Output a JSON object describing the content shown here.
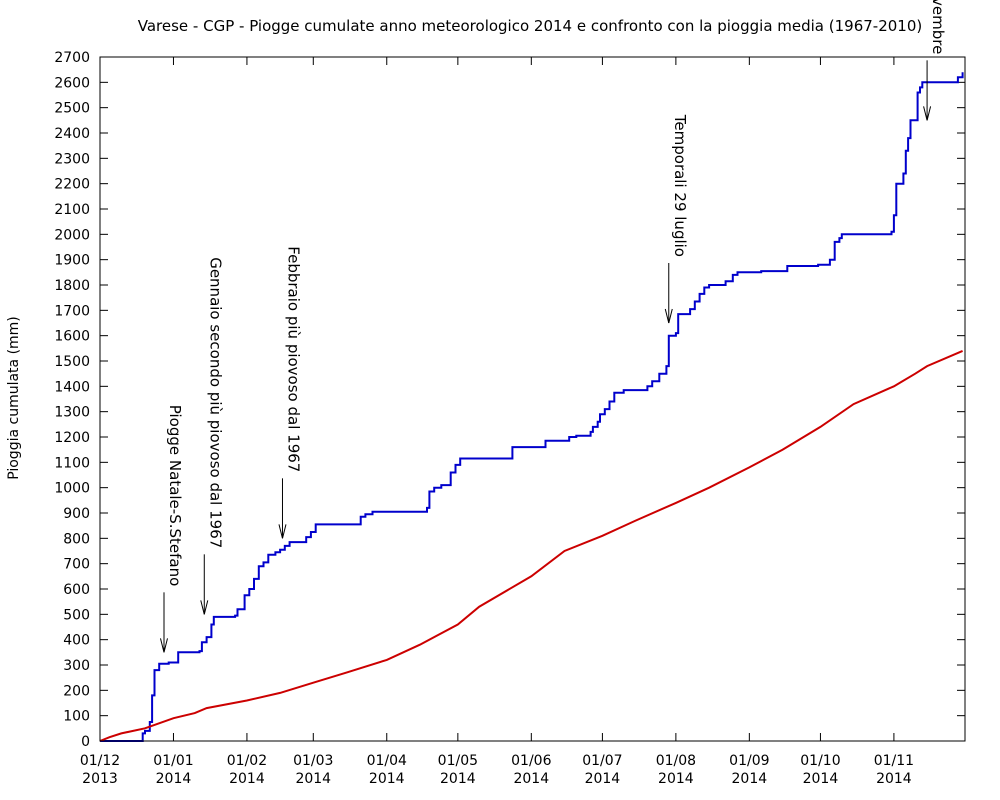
{
  "chart_data": {
    "type": "line",
    "title": "Varese - CGP - Piogge cumulate anno meteorologico 2014 e confronto con la pioggia media (1967-2010)",
    "xlabel": "",
    "ylabel": "Pioggia cumulata (mm)",
    "ylim": [
      0,
      2700
    ],
    "xlim": [
      "2013-12-01",
      "2014-11-30"
    ],
    "yticks": [
      "0",
      "100",
      "200",
      "300",
      "400",
      "500",
      "600",
      "700",
      "800",
      "900",
      "1000",
      "1100",
      "1200",
      "1300",
      "1400",
      "1500",
      "1600",
      "1700",
      "1800",
      "1900",
      "2000",
      "2100",
      "2200",
      "2300",
      "2400",
      "2500",
      "2600",
      "2700"
    ],
    "xticks": [
      {
        "date": "2013-12-01",
        "line1": "01/12",
        "line2": "2013"
      },
      {
        "date": "2014-01-01",
        "line1": "01/01",
        "line2": "2014"
      },
      {
        "date": "2014-02-01",
        "line1": "01/02",
        "line2": "2014"
      },
      {
        "date": "2014-03-01",
        "line1": "01/03",
        "line2": "2014"
      },
      {
        "date": "2014-04-01",
        "line1": "01/04",
        "line2": "2014"
      },
      {
        "date": "2014-05-01",
        "line1": "01/05",
        "line2": "2014"
      },
      {
        "date": "2014-06-01",
        "line1": "01/06",
        "line2": "2014"
      },
      {
        "date": "2014-07-01",
        "line1": "01/07",
        "line2": "2014"
      },
      {
        "date": "2014-08-01",
        "line1": "01/08",
        "line2": "2014"
      },
      {
        "date": "2014-09-01",
        "line1": "01/09",
        "line2": "2014"
      },
      {
        "date": "2014-10-01",
        "line1": "01/10",
        "line2": "2014"
      },
      {
        "date": "2014-11-01",
        "line1": "01/11",
        "line2": "2014"
      }
    ],
    "grid": false,
    "legend": "none",
    "series": [
      {
        "color": "#0000cc",
        "step": true,
        "points": [
          [
            "2013-12-01",
            0
          ],
          [
            "2013-12-18",
            0
          ],
          [
            "2013-12-19",
            30
          ],
          [
            "2013-12-20",
            40
          ],
          [
            "2013-12-22",
            75
          ],
          [
            "2013-12-23",
            180
          ],
          [
            "2013-12-24",
            280
          ],
          [
            "2013-12-26",
            305
          ],
          [
            "2013-12-30",
            310
          ],
          [
            "2014-01-03",
            350
          ],
          [
            "2014-01-12",
            355
          ],
          [
            "2014-01-13",
            390
          ],
          [
            "2014-01-15",
            410
          ],
          [
            "2014-01-17",
            460
          ],
          [
            "2014-01-18",
            490
          ],
          [
            "2014-01-27",
            495
          ],
          [
            "2014-01-28",
            520
          ],
          [
            "2014-01-31",
            575
          ],
          [
            "2014-02-02",
            600
          ],
          [
            "2014-02-04",
            640
          ],
          [
            "2014-02-06",
            690
          ],
          [
            "2014-02-08",
            705
          ],
          [
            "2014-02-10",
            735
          ],
          [
            "2014-02-13",
            745
          ],
          [
            "2014-02-15",
            755
          ],
          [
            "2014-02-17",
            770
          ],
          [
            "2014-02-19",
            785
          ],
          [
            "2014-02-26",
            805
          ],
          [
            "2014-02-28",
            825
          ],
          [
            "2014-03-02",
            855
          ],
          [
            "2014-03-21",
            885
          ],
          [
            "2014-03-23",
            895
          ],
          [
            "2014-03-26",
            905
          ],
          [
            "2014-04-18",
            920
          ],
          [
            "2014-04-19",
            985
          ],
          [
            "2014-04-21",
            1000
          ],
          [
            "2014-04-24",
            1010
          ],
          [
            "2014-04-28",
            1060
          ],
          [
            "2014-04-30",
            1090
          ],
          [
            "2014-05-02",
            1115
          ],
          [
            "2014-05-24",
            1160
          ],
          [
            "2014-06-07",
            1185
          ],
          [
            "2014-06-17",
            1200
          ],
          [
            "2014-06-20",
            1205
          ],
          [
            "2014-06-26",
            1220
          ],
          [
            "2014-06-27",
            1240
          ],
          [
            "2014-06-29",
            1260
          ],
          [
            "2014-06-30",
            1290
          ],
          [
            "2014-07-02",
            1310
          ],
          [
            "2014-07-04",
            1340
          ],
          [
            "2014-07-06",
            1375
          ],
          [
            "2014-07-10",
            1385
          ],
          [
            "2014-07-20",
            1400
          ],
          [
            "2014-07-22",
            1420
          ],
          [
            "2014-07-25",
            1450
          ],
          [
            "2014-07-28",
            1480
          ],
          [
            "2014-07-29",
            1600
          ],
          [
            "2014-08-01",
            1610
          ],
          [
            "2014-08-02",
            1685
          ],
          [
            "2014-08-07",
            1705
          ],
          [
            "2014-08-09",
            1735
          ],
          [
            "2014-08-11",
            1765
          ],
          [
            "2014-08-13",
            1790
          ],
          [
            "2014-08-15",
            1800
          ],
          [
            "2014-08-22",
            1815
          ],
          [
            "2014-08-25",
            1840
          ],
          [
            "2014-08-27",
            1850
          ],
          [
            "2014-09-06",
            1855
          ],
          [
            "2014-09-17",
            1875
          ],
          [
            "2014-09-30",
            1880
          ],
          [
            "2014-10-05",
            1900
          ],
          [
            "2014-10-07",
            1970
          ],
          [
            "2014-10-09",
            1985
          ],
          [
            "2014-10-10",
            2000
          ],
          [
            "2014-10-31",
            2010
          ],
          [
            "2014-11-01",
            2075
          ],
          [
            "2014-11-02",
            2200
          ],
          [
            "2014-11-05",
            2240
          ],
          [
            "2014-11-06",
            2330
          ],
          [
            "2014-11-07",
            2380
          ],
          [
            "2014-11-08",
            2450
          ],
          [
            "2014-11-11",
            2560
          ],
          [
            "2014-11-12",
            2580
          ],
          [
            "2014-11-13",
            2600
          ],
          [
            "2014-11-28",
            2620
          ],
          [
            "2014-11-30",
            2640
          ]
        ]
      },
      {
        "color": "#cc0000",
        "step": false,
        "points": [
          [
            "2013-12-01",
            0
          ],
          [
            "2013-12-05",
            15
          ],
          [
            "2013-12-10",
            30
          ],
          [
            "2013-12-20",
            50
          ],
          [
            "2014-01-01",
            90
          ],
          [
            "2014-01-10",
            110
          ],
          [
            "2014-01-15",
            130
          ],
          [
            "2014-02-01",
            160
          ],
          [
            "2014-02-15",
            190
          ],
          [
            "2014-03-01",
            230
          ],
          [
            "2014-03-15",
            270
          ],
          [
            "2014-04-01",
            320
          ],
          [
            "2014-04-15",
            380
          ],
          [
            "2014-05-01",
            460
          ],
          [
            "2014-05-10",
            530
          ],
          [
            "2014-06-01",
            650
          ],
          [
            "2014-06-15",
            750
          ],
          [
            "2014-07-01",
            810
          ],
          [
            "2014-07-15",
            870
          ],
          [
            "2014-08-01",
            940
          ],
          [
            "2014-08-15",
            1000
          ],
          [
            "2014-09-01",
            1080
          ],
          [
            "2014-09-15",
            1150
          ],
          [
            "2014-10-01",
            1240
          ],
          [
            "2014-10-15",
            1330
          ],
          [
            "2014-11-01",
            1400
          ],
          [
            "2014-11-10",
            1450
          ],
          [
            "2014-11-15",
            1480
          ],
          [
            "2014-11-30",
            1540
          ]
        ]
      }
    ],
    "annotations": [
      {
        "text": "Piogge Natale-S.Stefano",
        "date": "2013-12-28",
        "value": 350
      },
      {
        "text": "Gennaio secondo più piovoso dal 1967",
        "date": "2014-01-14",
        "value": 500
      },
      {
        "text": "Febbraio più piovoso dal 1967",
        "date": "2014-02-16",
        "value": 800
      },
      {
        "text": "Temporali 29 luglio",
        "date": "2014-07-29",
        "value": 1650
      },
      {
        "text": "Alluvioni novembre",
        "date": "2014-11-15",
        "value": 2450
      }
    ]
  }
}
